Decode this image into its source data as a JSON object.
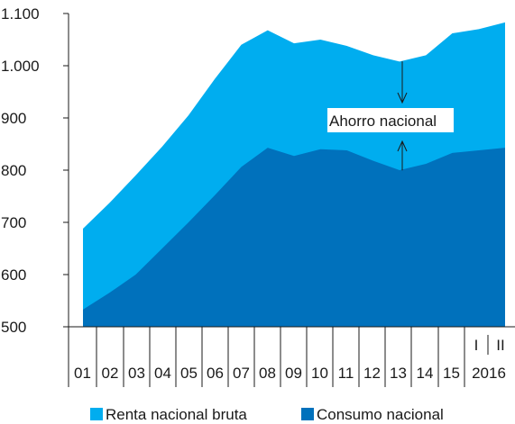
{
  "chart_data": {
    "type": "area",
    "x": [
      "01",
      "02",
      "03",
      "04",
      "05",
      "06",
      "07",
      "08",
      "09",
      "10",
      "11",
      "12",
      "13",
      "14",
      "15",
      "2016 I",
      "2016 II"
    ],
    "x_tick_labels": [
      "01",
      "02",
      "03",
      "04",
      "05",
      "06",
      "07",
      "08",
      "09",
      "10",
      "11",
      "12",
      "13",
      "14",
      "15"
    ],
    "year_label": "2016",
    "quarter_labels": [
      "I",
      "II"
    ],
    "series": [
      {
        "name": "Renta nacional bruta",
        "color": "#00adef",
        "values": [
          688,
          737,
          790,
          845,
          905,
          975,
          1040,
          1068,
          1043,
          1050,
          1038,
          1020,
          1008,
          1020,
          1062,
          1070,
          1083
        ]
      },
      {
        "name": "Consumo nacional",
        "color": "#0071bc",
        "values": [
          533,
          565,
          600,
          650,
          700,
          752,
          806,
          843,
          827,
          840,
          838,
          818,
          800,
          812,
          833,
          838,
          843
        ]
      }
    ],
    "y_ticks": [
      500,
      600,
      700,
      800,
      900,
      1000,
      1100
    ],
    "y_tick_labels": [
      "500",
      "600",
      "700",
      "800",
      "900",
      "1.000",
      "1.100"
    ],
    "ylim": [
      500,
      1100
    ],
    "annotation": {
      "text": "Ahorro nacional",
      "x": "13",
      "top_value": 1005,
      "bottom_value": 803
    },
    "grid": false,
    "legend_position": "bottom"
  }
}
